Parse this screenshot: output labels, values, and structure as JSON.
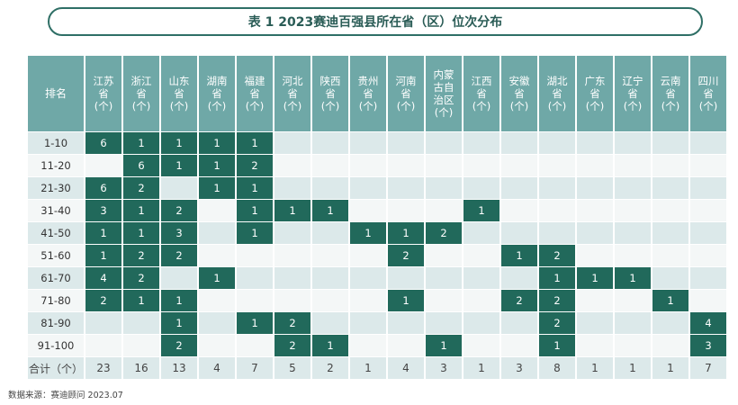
{
  "title": "表 1  2023赛迪百强县所在省（区）位次分布",
  "table": {
    "rank_header": "排名",
    "columns": [
      [
        "江苏",
        "省",
        "(个)"
      ],
      [
        "浙江",
        "省",
        "(个)"
      ],
      [
        "山东",
        "省",
        "(个)"
      ],
      [
        "湖南",
        "省",
        "(个)"
      ],
      [
        "福建",
        "省",
        "(个)"
      ],
      [
        "河北",
        "省",
        "(个)"
      ],
      [
        "陕西",
        "省",
        "(个)"
      ],
      [
        "贵州",
        "省",
        "(个)"
      ],
      [
        "河南",
        "省",
        "(个)"
      ],
      [
        "内蒙",
        "古自",
        "治区",
        "(个)"
      ],
      [
        "江西",
        "省",
        "(个)"
      ],
      [
        "安徽",
        "省",
        "(个)"
      ],
      [
        "湖北",
        "省",
        "(个)"
      ],
      [
        "广东",
        "省",
        "(个)"
      ],
      [
        "辽宁",
        "省",
        "(个)"
      ],
      [
        "云南",
        "省",
        "(个)"
      ],
      [
        "四川",
        "省",
        "(个)"
      ]
    ],
    "rows": [
      {
        "rank": "1-10",
        "values": [
          "6",
          "1",
          "1",
          "1",
          "1",
          "",
          "",
          "",
          "",
          "",
          "",
          "",
          "",
          "",
          "",
          "",
          ""
        ]
      },
      {
        "rank": "11-20",
        "values": [
          "",
          "6",
          "1",
          "1",
          "2",
          "",
          "",
          "",
          "",
          "",
          "",
          "",
          "",
          "",
          "",
          "",
          ""
        ]
      },
      {
        "rank": "21-30",
        "values": [
          "6",
          "2",
          "",
          "1",
          "1",
          "",
          "",
          "",
          "",
          "",
          "",
          "",
          "",
          "",
          "",
          "",
          ""
        ]
      },
      {
        "rank": "31-40",
        "values": [
          "3",
          "1",
          "2",
          "",
          "1",
          "1",
          "1",
          "",
          "",
          "",
          "1",
          "",
          "",
          "",
          "",
          "",
          ""
        ]
      },
      {
        "rank": "41-50",
        "values": [
          "1",
          "1",
          "3",
          "",
          "1",
          "",
          "",
          "1",
          "1",
          "2",
          "",
          "",
          "",
          "",
          "",
          "",
          ""
        ]
      },
      {
        "rank": "51-60",
        "values": [
          "1",
          "2",
          "2",
          "",
          "",
          "",
          "",
          "",
          "2",
          "",
          "",
          "1",
          "2",
          "",
          "",
          "",
          ""
        ]
      },
      {
        "rank": "61-70",
        "values": [
          "4",
          "2",
          "",
          "1",
          "",
          "",
          "",
          "",
          "",
          "",
          "",
          "",
          "1",
          "1",
          "1",
          "",
          ""
        ]
      },
      {
        "rank": "71-80",
        "values": [
          "2",
          "1",
          "1",
          "",
          "",
          "",
          "",
          "",
          "1",
          "",
          "",
          "2",
          "2",
          "",
          "",
          "1",
          ""
        ]
      },
      {
        "rank": "81-90",
        "values": [
          "",
          "",
          "1",
          "",
          "1",
          "2",
          "",
          "",
          "",
          "",
          "",
          "",
          "2",
          "",
          "",
          "",
          "4"
        ]
      },
      {
        "rank": "91-100",
        "values": [
          "",
          "",
          "2",
          "",
          "",
          "2",
          "1",
          "",
          "",
          "1",
          "",
          "",
          "1",
          "",
          "",
          "",
          "3"
        ]
      }
    ],
    "total": {
      "rank": "合计（个）",
      "values": [
        "23",
        "16",
        "13",
        "4",
        "7",
        "5",
        "2",
        "1",
        "4",
        "3",
        "1",
        "3",
        "8",
        "1",
        "1",
        "1",
        "7"
      ]
    }
  },
  "source": "数据来源：赛迪顾问 2023.07",
  "colors": {
    "header": "#6fa8a7",
    "filled": "#21695b",
    "row_odd": "#dce9ea",
    "row_even": "#f4f7f7",
    "title_border": "#2f6f66"
  }
}
